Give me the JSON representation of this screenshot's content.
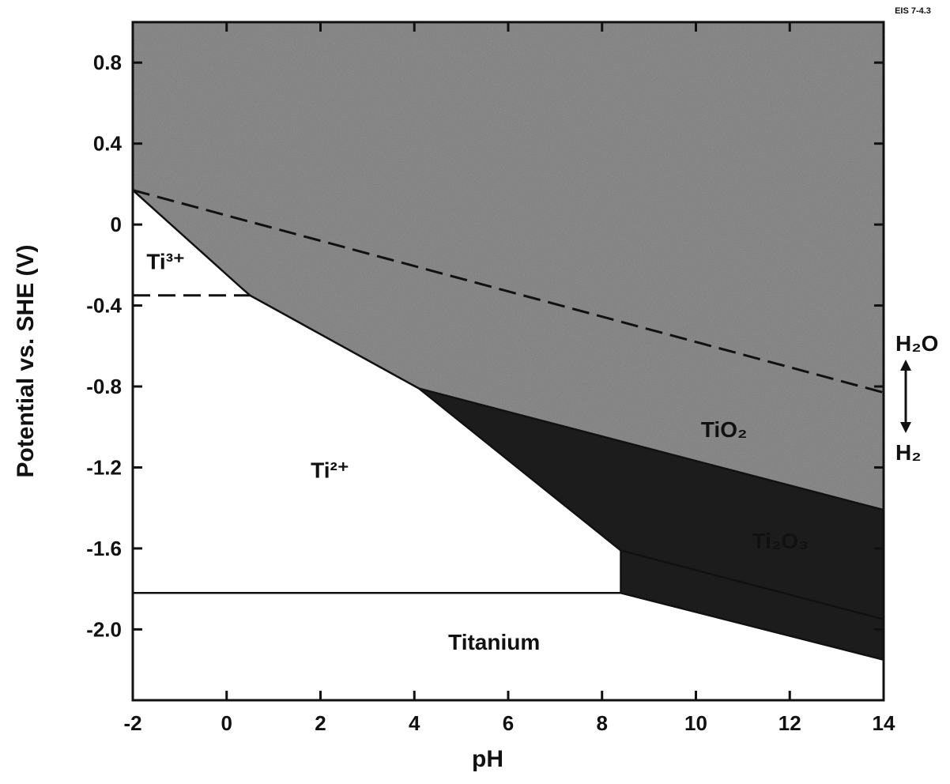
{
  "figure_tag": "EIS 7-4.3",
  "chart_data": {
    "type": "area",
    "xlabel": "pH",
    "ylabel": "Potential vs. SHE (V)",
    "xlim": [
      -2,
      14
    ],
    "ylim": [
      -2.35,
      1.0
    ],
    "x_ticks": [
      -2,
      0,
      2,
      4,
      6,
      8,
      10,
      12,
      14
    ],
    "y_ticks": [
      0.8,
      0.4,
      0,
      -0.4,
      -0.8,
      -1.2,
      -1.6,
      -2.0
    ],
    "x_tick_labels": [
      "-2",
      "0",
      "2",
      "4",
      "6",
      "8",
      "10",
      "12",
      "14"
    ],
    "y_tick_labels": [
      "0.8",
      "0.4",
      "0",
      "-0.4",
      "-0.8",
      "-1.2",
      "-1.6",
      "-2.0"
    ],
    "regions": [
      {
        "name": "TiO2",
        "color": "#8f8f8f",
        "polygon": [
          [
            -2,
            1.0
          ],
          [
            14,
            1.0
          ],
          [
            14,
            -1.41
          ],
          [
            4.1,
            -0.81
          ],
          [
            0.5,
            -0.35
          ],
          [
            0.3,
            -0.31
          ],
          [
            -2,
            0.17
          ]
        ]
      },
      {
        "name": "Ti2O3",
        "color": "#1e1e1e",
        "polygon": [
          [
            4.1,
            -0.81
          ],
          [
            14,
            -1.41
          ],
          [
            14,
            -2.15
          ],
          [
            8.4,
            -1.82
          ],
          [
            8.4,
            -1.61
          ]
        ]
      },
      {
        "name": "Ti3+",
        "color": "#ffffff",
        "polygon": [
          [
            -2,
            0.17
          ],
          [
            0.3,
            -0.31
          ],
          [
            0.5,
            -0.35
          ],
          [
            -2,
            -0.35
          ]
        ]
      },
      {
        "name": "Ti2+",
        "color": "#ffffff",
        "polygon": [
          [
            -2,
            -0.35
          ],
          [
            0.5,
            -0.35
          ],
          [
            4.1,
            -0.81
          ],
          [
            8.4,
            -1.61
          ],
          [
            8.4,
            -1.82
          ],
          [
            -2,
            -1.82
          ]
        ]
      },
      {
        "name": "Titanium",
        "color": "#ffffff",
        "polygon": [
          [
            -2,
            -1.82
          ],
          [
            8.4,
            -1.82
          ],
          [
            14,
            -2.15
          ],
          [
            14,
            -2.35
          ],
          [
            -2,
            -2.35
          ]
        ]
      }
    ],
    "boundaries": [
      {
        "points": [
          [
            -2,
            0.17
          ],
          [
            0.3,
            -0.31
          ],
          [
            0.5,
            -0.35
          ],
          [
            4.1,
            -0.81
          ],
          [
            8.4,
            -1.61
          ],
          [
            8.4,
            -1.82
          ]
        ],
        "style": "solid"
      },
      {
        "points": [
          [
            4.1,
            -0.81
          ],
          [
            14,
            -1.41
          ]
        ],
        "style": "solid"
      },
      {
        "points": [
          [
            -2,
            -1.82
          ],
          [
            8.4,
            -1.82
          ],
          [
            14,
            -2.15
          ]
        ],
        "style": "solid"
      },
      {
        "points": [
          [
            8.4,
            -1.61
          ],
          [
            14,
            -1.95
          ]
        ],
        "style": "solid"
      },
      {
        "points": [
          [
            -2,
            -0.35
          ],
          [
            0.5,
            -0.35
          ]
        ],
        "style": "dashed"
      },
      {
        "points": [
          [
            -2,
            0.17
          ],
          [
            14,
            -0.83
          ]
        ],
        "style": "dashed"
      }
    ],
    "annotations": [
      {
        "text": "Ti³⁺",
        "x": -1.3,
        "y": -0.22
      },
      {
        "text": "Ti²⁺",
        "x": 2.2,
        "y": -1.25
      },
      {
        "text": "TiO₂",
        "x": 10.6,
        "y": -1.05
      },
      {
        "text": "Ti₂O₃",
        "x": 11.8,
        "y": -1.6
      },
      {
        "text": "Titanium",
        "x": 5.7,
        "y": -2.1
      }
    ],
    "water_line_labels": {
      "upper": "H₂O",
      "lower": "H₂"
    },
    "grid": false
  }
}
